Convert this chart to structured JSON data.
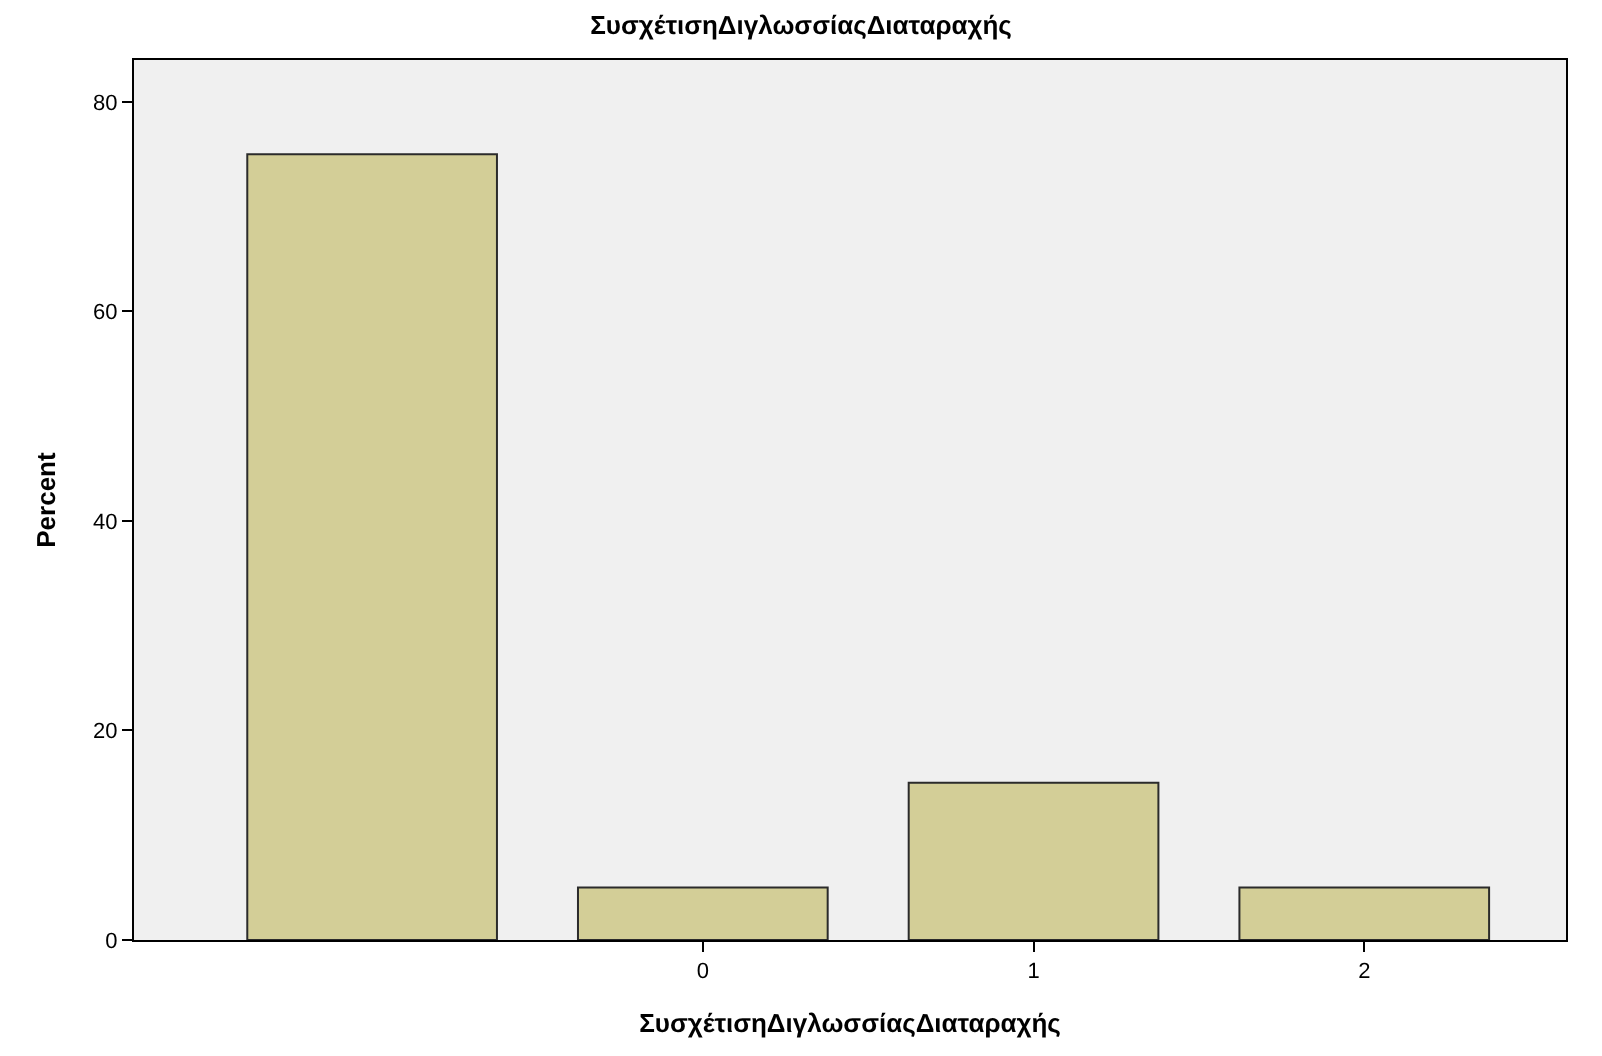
{
  "chart_data": {
    "type": "bar",
    "title": "ΣυσχέτισηΔιγλωσσίαςΔιαταραχής",
    "xlabel": "ΣυσχέτισηΔιγλωσσίαςΔιαταραχής",
    "ylabel": "Percent",
    "categories": [
      null,
      "0",
      "1",
      "2"
    ],
    "values": [
      75,
      5,
      15,
      5
    ],
    "color": "#d3ce97",
    "ylim": [
      0,
      84
    ],
    "yticks": [
      0,
      20,
      40,
      60,
      80
    ],
    "grid": false
  }
}
